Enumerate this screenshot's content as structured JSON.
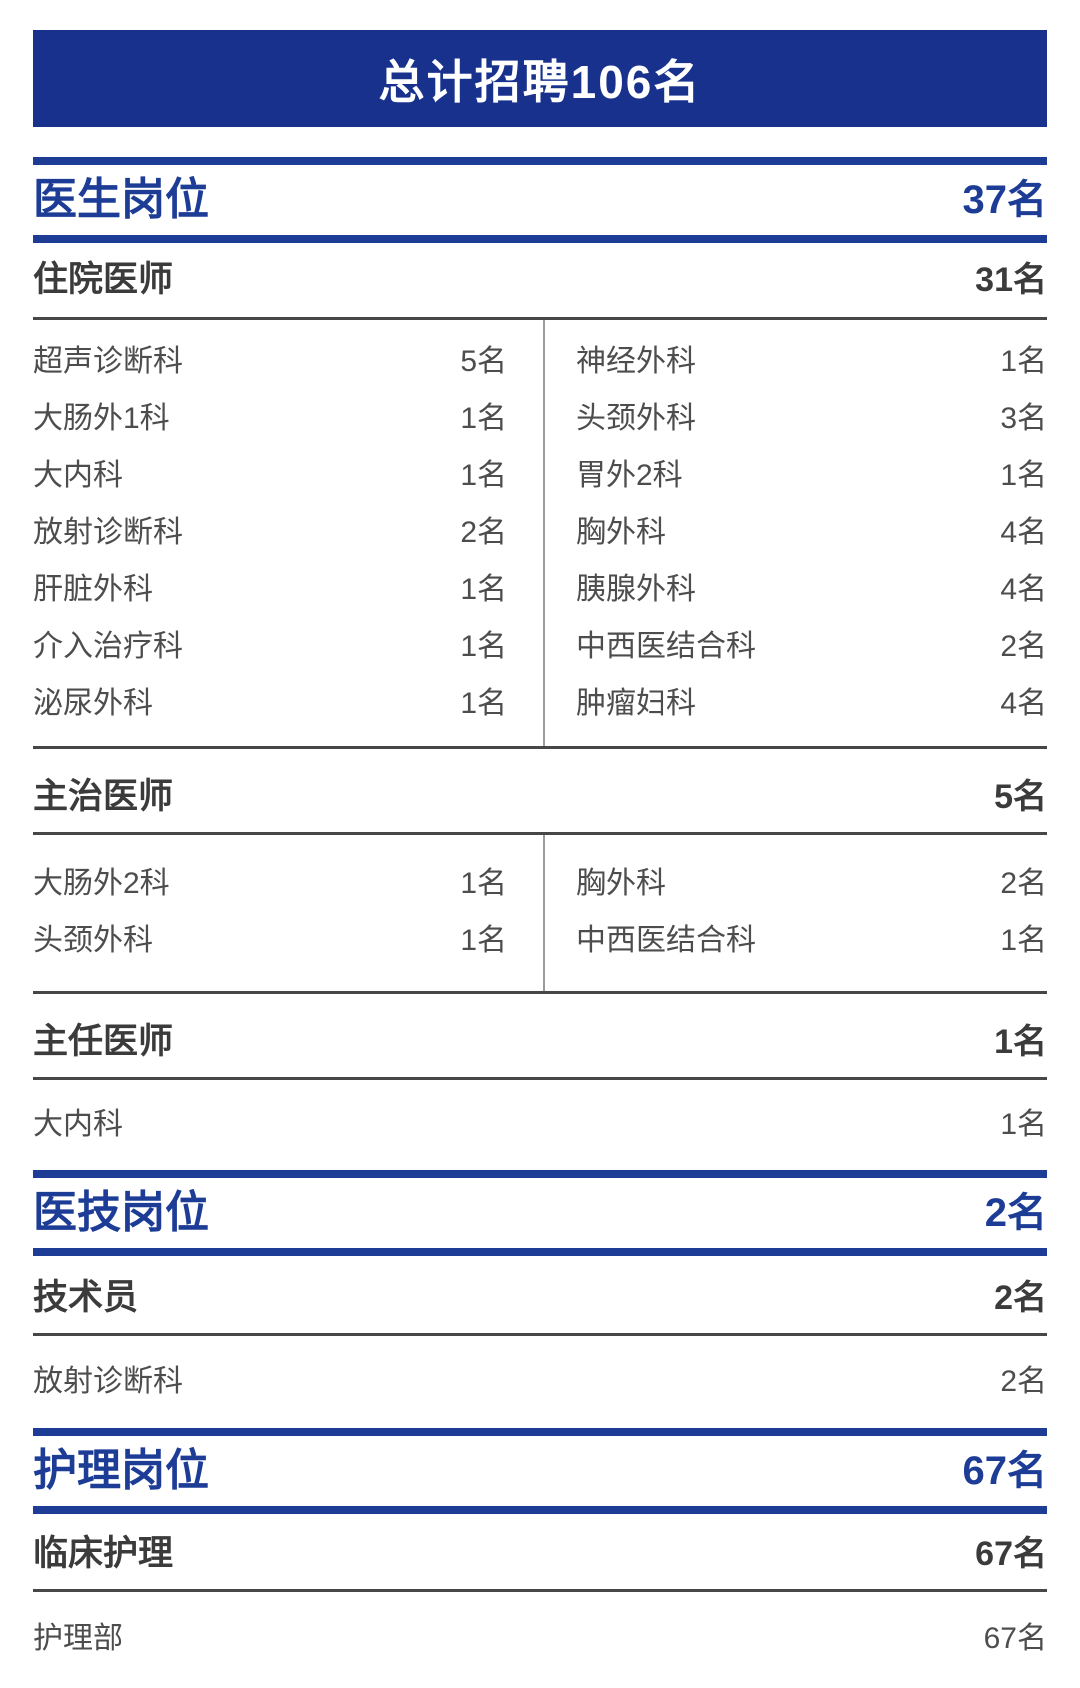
{
  "banner": {
    "title": "总计招聘106名"
  },
  "colors": {
    "banner_blue": "#17318c",
    "accent_blue": "#1d3c96",
    "dark_text": "#3b3b3b",
    "list_text": "#4d4d4d"
  },
  "sections": [
    {
      "title": "医生岗位",
      "count": "37名",
      "subsections": [
        {
          "title": "住院医师",
          "count": "31名",
          "left": [
            {
              "label": "超声诊断科",
              "count": "5名"
            },
            {
              "label": "大肠外1科",
              "count": "1名"
            },
            {
              "label": "大内科",
              "count": "1名"
            },
            {
              "label": "放射诊断科",
              "count": "2名"
            },
            {
              "label": "肝脏外科",
              "count": "1名"
            },
            {
              "label": "介入治疗科",
              "count": "1名"
            },
            {
              "label": "泌尿外科",
              "count": "1名"
            }
          ],
          "right": [
            {
              "label": "神经外科",
              "count": "1名"
            },
            {
              "label": "头颈外科",
              "count": "3名"
            },
            {
              "label": "胃外2科",
              "count": "1名"
            },
            {
              "label": "胸外科",
              "count": "4名"
            },
            {
              "label": "胰腺外科",
              "count": "4名"
            },
            {
              "label": "中西医结合科",
              "count": "2名"
            },
            {
              "label": "肿瘤妇科",
              "count": "4名"
            }
          ]
        },
        {
          "title": "主治医师",
          "count": "5名",
          "left": [
            {
              "label": "大肠外2科",
              "count": "1名"
            },
            {
              "label": "头颈外科",
              "count": "1名"
            }
          ],
          "right": [
            {
              "label": "胸外科",
              "count": "2名"
            },
            {
              "label": "中西医结合科",
              "count": "1名"
            }
          ]
        },
        {
          "title": "主任医师",
          "count": "1名",
          "single": {
            "label": "大内科",
            "count": "1名"
          }
        }
      ]
    },
    {
      "title": "医技岗位",
      "count": "2名",
      "subsections": [
        {
          "title": "技术员",
          "count": "2名",
          "single": {
            "label": "放射诊断科",
            "count": "2名"
          }
        }
      ]
    },
    {
      "title": "护理岗位",
      "count": "67名",
      "subsections": [
        {
          "title": "临床护理",
          "count": "67名",
          "single": {
            "label": "护理部",
            "count": "67名"
          }
        }
      ]
    }
  ]
}
